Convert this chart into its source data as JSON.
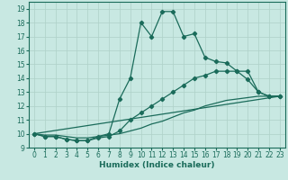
{
  "xlabel": "Humidex (Indice chaleur)",
  "xlim": [
    -0.5,
    23.5
  ],
  "ylim": [
    9,
    19.5
  ],
  "yticks": [
    9,
    10,
    11,
    12,
    13,
    14,
    15,
    16,
    17,
    18,
    19
  ],
  "xticks": [
    0,
    1,
    2,
    3,
    4,
    5,
    6,
    7,
    8,
    9,
    10,
    11,
    12,
    13,
    14,
    15,
    16,
    17,
    18,
    19,
    20,
    21,
    22,
    23
  ],
  "bg_color": "#c8e8e2",
  "grid_color": "#aed0c8",
  "line_color": "#1a6b5a",
  "series": [
    {
      "x": [
        0,
        1,
        2,
        3,
        4,
        5,
        6,
        7,
        8,
        9,
        10,
        11,
        12,
        13,
        14,
        15,
        16,
        17,
        18,
        19,
        20,
        21,
        22,
        23
      ],
      "y": [
        10.0,
        9.8,
        9.8,
        9.6,
        9.5,
        9.5,
        9.8,
        10.0,
        12.5,
        14.0,
        18.0,
        17.0,
        18.8,
        18.8,
        17.0,
        17.2,
        15.5,
        15.2,
        15.1,
        14.5,
        13.9,
        13.0,
        12.7,
        12.7
      ],
      "marker": true
    },
    {
      "x": [
        0,
        1,
        2,
        3,
        4,
        5,
        6,
        7,
        8,
        9,
        10,
        11,
        12,
        13,
        14,
        15,
        16,
        17,
        18,
        19,
        20,
        21,
        22,
        23
      ],
      "y": [
        10.0,
        9.8,
        9.8,
        9.6,
        9.5,
        9.5,
        9.7,
        9.8,
        10.2,
        11.0,
        11.5,
        12.0,
        12.5,
        13.0,
        13.5,
        14.0,
        14.2,
        14.5,
        14.5,
        14.5,
        14.5,
        13.0,
        12.7,
        12.7
      ],
      "marker": true
    },
    {
      "x": [
        0,
        1,
        2,
        3,
        4,
        5,
        6,
        7,
        8,
        9,
        10,
        11,
        12,
        13,
        14,
        15,
        16,
        17,
        18,
        19,
        20,
        21,
        22,
        23
      ],
      "y": [
        10.0,
        9.9,
        9.9,
        9.8,
        9.7,
        9.7,
        9.8,
        9.9,
        10.0,
        10.2,
        10.4,
        10.7,
        10.9,
        11.2,
        11.5,
        11.7,
        12.0,
        12.2,
        12.4,
        12.5,
        12.6,
        12.7,
        12.7,
        12.7
      ],
      "marker": false
    },
    {
      "x": [
        0,
        23
      ],
      "y": [
        10.0,
        12.7
      ],
      "marker": false
    }
  ]
}
